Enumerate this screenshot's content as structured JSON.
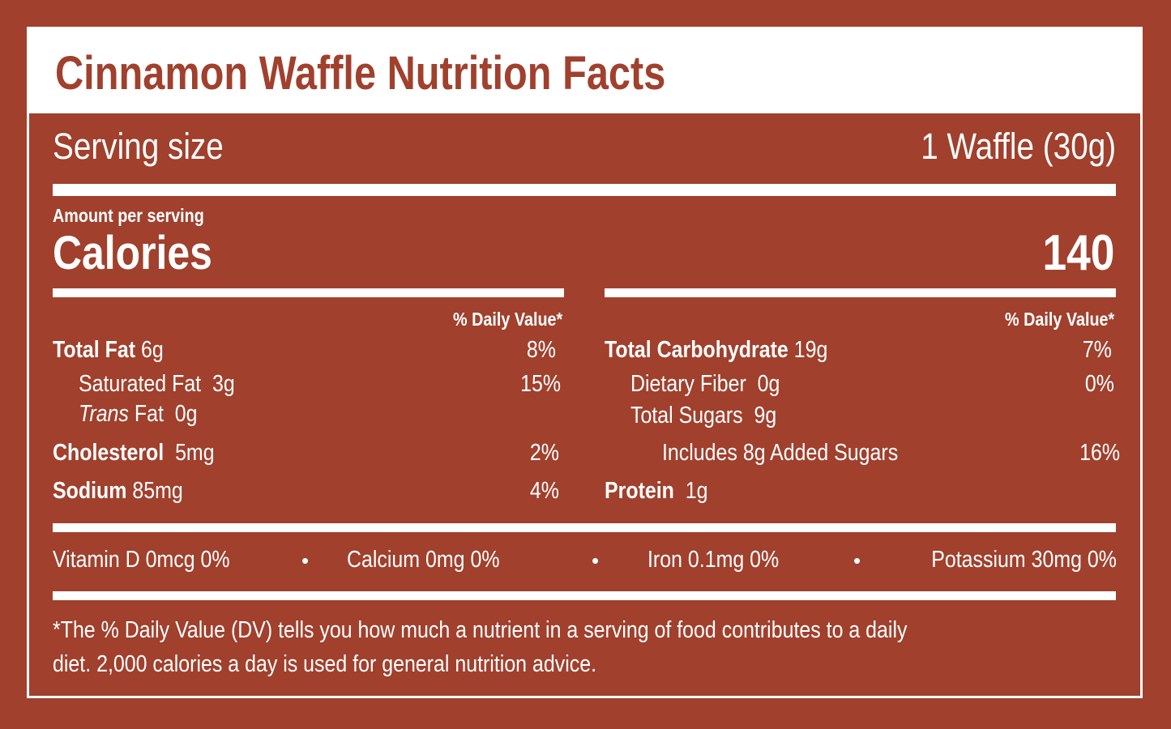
{
  "title": "Cinnamon Waffle Nutrition Facts",
  "colors": {
    "background": "#a0402d",
    "text": "#ffffff",
    "title": "#a0402d"
  },
  "serving": {
    "label": "Serving size",
    "value": "1 Waffle (30g)"
  },
  "amount_per_serving": "Amount per serving",
  "calories": {
    "label": "Calories",
    "value": "140"
  },
  "daily_value_header": "% Daily Value*",
  "left": [
    {
      "name": "Total Fat",
      "amount": "6g",
      "dv": "8%"
    },
    {
      "name": "Saturated Fat",
      "amount": "3g",
      "dv": "15%"
    },
    {
      "name_italic": "Trans",
      "name": "Fat",
      "amount": "0g"
    },
    {
      "name": "Cholesterol",
      "amount": "5mg",
      "dv": "2%"
    },
    {
      "name": "Sodium",
      "amount": "85mg",
      "dv": "4%"
    }
  ],
  "right": [
    {
      "name": "Total Carbohydrate",
      "amount": "19g",
      "dv": "7%"
    },
    {
      "name": "Dietary Fiber",
      "amount": "0g",
      "dv": "0%"
    },
    {
      "name": "Total Sugars",
      "amount": "9g"
    },
    {
      "name": "Includes 8g Added Sugars",
      "dv": "16%"
    },
    {
      "name": "Protein",
      "amount": "1g"
    }
  ],
  "vitamins": [
    "Vitamin D 0mcg 0%",
    "Calcium 0mg 0%",
    "Iron 0.1mg 0%",
    "Potassium 30mg 0%"
  ],
  "separator": "•",
  "footnote": [
    "*The % Daily Value (DV) tells you how much a nutrient in a serving of food contributes to a daily",
    "diet. 2,000 calories a day is used for general nutrition advice."
  ]
}
